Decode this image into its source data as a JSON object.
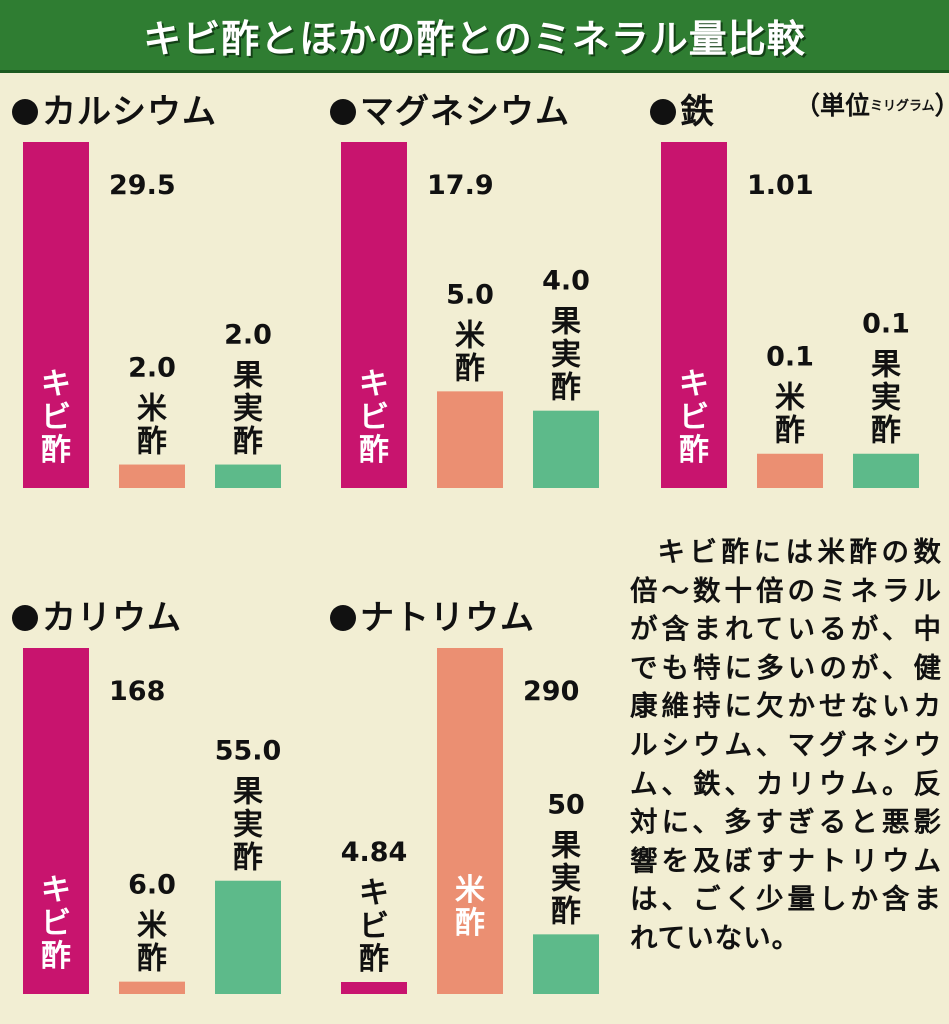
{
  "title": "キビ酢とほかの酢とのミネラル量比較",
  "unit_label": "（単位",
  "unit_small": "ミリグラム",
  "unit_close": "）",
  "description": "キビ酢には米酢の数倍〜数十倍のミネラルが含まれているが、中でも特に多いのが、健康維持に欠かせないカルシウム、マグネシウム、鉄、カリウム。反対に、多すぎると悪影響を及ぼすナトリウムは、ごく少量しか含まれていない。",
  "colors": {
    "kibi": "#c8146e",
    "rice": "#eb8f72",
    "fruit": "#5dba8a",
    "title_bg": "#2f7d32"
  },
  "chart_data": [
    {
      "type": "bar",
      "title": "カルシウム",
      "categories": [
        "キビ酢",
        "米酢",
        "果実酢"
      ],
      "values": [
        29.5,
        2.0,
        2.0
      ],
      "value_labels": [
        "29.5",
        "2.0",
        "2.0"
      ],
      "ylim": [
        0,
        29.5
      ]
    },
    {
      "type": "bar",
      "title": "マグネシウム",
      "categories": [
        "キビ酢",
        "米酢",
        "果実酢"
      ],
      "values": [
        17.9,
        5.0,
        4.0
      ],
      "value_labels": [
        "17.9",
        "5.0",
        "4.0"
      ],
      "ylim": [
        0,
        17.9
      ]
    },
    {
      "type": "bar",
      "title": "鉄",
      "categories": [
        "キビ酢",
        "米酢",
        "果実酢"
      ],
      "values": [
        1.01,
        0.1,
        0.1
      ],
      "value_labels": [
        "1.01",
        "0.1",
        "0.1"
      ],
      "ylim": [
        0,
        1.01
      ]
    },
    {
      "type": "bar",
      "title": "カリウム",
      "categories": [
        "キビ酢",
        "米酢",
        "果実酢"
      ],
      "values": [
        168,
        6.0,
        55.0
      ],
      "value_labels": [
        "168",
        "6.0",
        "55.0"
      ],
      "ylim": [
        0,
        168
      ]
    },
    {
      "type": "bar",
      "title": "ナトリウム",
      "categories": [
        "キビ酢",
        "米酢",
        "果実酢"
      ],
      "values": [
        4.84,
        290,
        50
      ],
      "value_labels": [
        "4.84",
        "290",
        "50"
      ],
      "ylim": [
        0,
        290
      ]
    }
  ]
}
